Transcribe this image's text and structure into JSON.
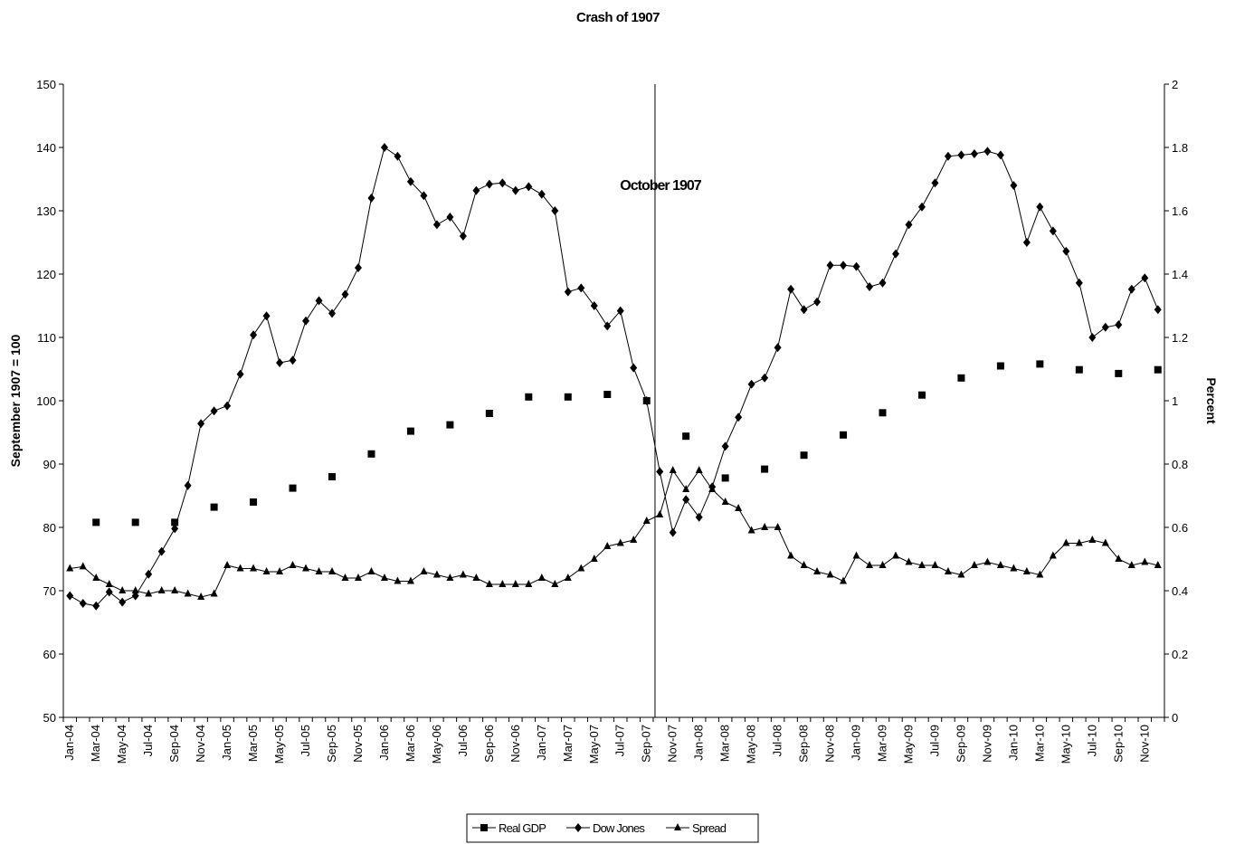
{
  "chart_data": {
    "type": "line",
    "title": "Crash of 1907",
    "y_label": "September 1907 = 100",
    "y2_label": "Percent",
    "annotation": "October 1907",
    "categories": [
      "Jan-04",
      null,
      "Mar-04",
      null,
      "May-04",
      null,
      "Jul-04",
      null,
      "Sep-04",
      null,
      "Nov-04",
      null,
      "Jan-05",
      null,
      "Mar-05",
      null,
      "May-05",
      null,
      "Jul-05",
      null,
      "Sep-05",
      null,
      "Nov-05",
      null,
      "Jan-06",
      null,
      "Mar-06",
      null,
      "May-06",
      null,
      "Jul-06",
      null,
      "Sep-06",
      null,
      "Nov-06",
      null,
      "Jan-07",
      null,
      "Mar-07",
      null,
      "May-07",
      null,
      "Jul-07",
      null,
      "Sep-07",
      null,
      "Nov-07",
      null,
      "Jan-08",
      null,
      "Mar-08",
      null,
      "May-08",
      null,
      "Jul-08",
      null,
      "Sep-08",
      null,
      "Nov-08",
      null,
      "Jan-09",
      null,
      "Mar-09",
      null,
      "May-09",
      null,
      "Jul-09",
      null,
      "Sep-09",
      null,
      "Nov-09",
      null,
      "Jan-10",
      null,
      "Mar-10",
      null,
      "May-10",
      null,
      "Jul-10",
      null,
      "Sep-10",
      null,
      "Nov-10",
      null
    ],
    "series": [
      {
        "name": "Real GDP",
        "color": "#000000",
        "marker": "square",
        "line": false,
        "values": [
          null,
          null,
          80.8,
          null,
          null,
          80.8,
          null,
          null,
          80.8,
          null,
          null,
          83.2,
          null,
          null,
          84,
          null,
          null,
          86.2,
          null,
          null,
          88,
          null,
          null,
          91.6,
          null,
          null,
          95.2,
          null,
          null,
          96.2,
          null,
          null,
          98,
          null,
          null,
          100.6,
          null,
          null,
          100.6,
          null,
          null,
          101,
          null,
          null,
          100,
          null,
          null,
          94.4,
          null,
          null,
          87.8,
          null,
          null,
          89.2,
          null,
          null,
          91.4,
          null,
          null,
          94.6,
          null,
          null,
          98.1,
          null,
          null,
          100.9,
          null,
          null,
          103.6,
          null,
          null,
          105.5,
          null,
          null,
          105.8,
          null,
          null,
          104.9,
          null,
          null,
          104.3,
          null,
          null,
          104.9
        ]
      },
      {
        "name": "Dow Jones",
        "color": "#000000",
        "marker": "diamond",
        "line": true,
        "values": [
          69.2,
          68,
          67.6,
          69.8,
          68.2,
          69.2,
          72.6,
          76.2,
          79.8,
          86.6,
          96.4,
          98.4,
          99.2,
          104.2,
          110.4,
          113.4,
          106,
          106.4,
          112.6,
          115.8,
          113.8,
          116.8,
          121,
          132,
          140,
          138.6,
          134.6,
          132.4,
          127.8,
          129,
          126,
          133.2,
          134.2,
          134.4,
          133.2,
          133.8,
          132.6,
          130,
          117.2,
          117.8,
          115,
          111.8,
          114.2,
          105.2,
          100,
          88.8,
          79.2,
          84.4,
          81.6,
          86.4,
          92.8,
          97.4,
          102.6,
          103.6,
          108.4,
          117.6,
          114.4,
          115.6,
          121.4,
          121.4,
          121.2,
          118,
          118.6,
          123.2,
          127.8,
          130.6,
          134.4,
          138.6,
          138.8,
          139,
          139.4,
          138.8,
          134,
          125,
          130.6,
          126.8,
          123.6,
          118.6,
          110,
          111.6,
          112,
          117.6,
          119.4,
          114.4
        ]
      },
      {
        "name": "Spread",
        "color": "#000000",
        "marker": "triangle",
        "line": true,
        "axis": "y2",
        "values": [
          0.47,
          0.476,
          0.44,
          0.42,
          0.4,
          0.4,
          0.39,
          0.4,
          0.4,
          0.39,
          0.38,
          0.39,
          0.48,
          0.47,
          0.47,
          0.46,
          0.46,
          0.48,
          0.47,
          0.46,
          0.46,
          0.44,
          0.44,
          0.46,
          0.44,
          0.43,
          0.43,
          0.46,
          0.45,
          0.44,
          0.45,
          0.44,
          0.42,
          0.42,
          0.42,
          0.42,
          0.44,
          0.42,
          0.44,
          0.47,
          0.5,
          0.54,
          0.55,
          0.56,
          0.62,
          0.64,
          0.78,
          0.72,
          0.78,
          0.72,
          0.68,
          0.66,
          0.59,
          0.6,
          0.6,
          0.51,
          0.48,
          0.46,
          0.45,
          0.43,
          0.51,
          0.48,
          0.48,
          0.51,
          0.49,
          0.48,
          0.48,
          0.46,
          0.45,
          0.48,
          0.49,
          0.48,
          0.47,
          0.46,
          0.45,
          0.51,
          0.55,
          0.55,
          0.56,
          0.55,
          0.5,
          0.48,
          0.49,
          0.48
        ]
      }
    ],
    "ylim": [
      50,
      150
    ],
    "yticks": [
      50,
      60,
      70,
      80,
      90,
      100,
      110,
      120,
      130,
      140,
      150
    ],
    "y2lim": [
      0,
      2
    ],
    "y2ticks": [
      0,
      0.2,
      0.4,
      0.6,
      0.8,
      1,
      1.2,
      1.4,
      1.6,
      1.8,
      2
    ],
    "grid": false,
    "legend": "bottom"
  }
}
